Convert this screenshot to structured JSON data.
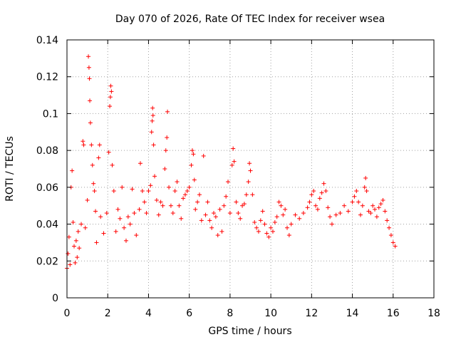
{
  "chart_data": {
    "type": "scatter",
    "title": "Day 070 of 2026, Rate Of TEC Index for receiver wsea",
    "xlabel": "GPS time / hours",
    "ylabel": "ROTI / TECUs",
    "xlim": [
      0,
      18
    ],
    "ylim": [
      0,
      0.14
    ],
    "xticks": [
      "0",
      "2",
      "4",
      "6",
      "8",
      "10",
      "12",
      "14",
      "16",
      "18"
    ],
    "yticks": [
      "0",
      "0.02",
      "0.04",
      "0.06",
      "0.08",
      "0.1",
      "0.12",
      "0.14"
    ],
    "grid": true,
    "marker": "+",
    "color": "#ff0000",
    "series": [
      {
        "points": [
          [
            0.0,
            0.016
          ],
          [
            0.05,
            0.024
          ],
          [
            0.1,
            0.033
          ],
          [
            0.15,
            0.018
          ],
          [
            0.2,
            0.06
          ],
          [
            0.25,
            0.069
          ],
          [
            0.3,
            0.041
          ],
          [
            0.35,
            0.028
          ],
          [
            0.4,
            0.019
          ],
          [
            0.45,
            0.031
          ],
          [
            0.5,
            0.022
          ],
          [
            0.55,
            0.036
          ],
          [
            0.6,
            0.027
          ],
          [
            0.7,
            0.04
          ],
          [
            0.78,
            0.085
          ],
          [
            0.82,
            0.083
          ],
          [
            0.9,
            0.038
          ],
          [
            1.0,
            0.053
          ],
          [
            1.05,
            0.131
          ],
          [
            1.08,
            0.125
          ],
          [
            1.1,
            0.119
          ],
          [
            1.12,
            0.107
          ],
          [
            1.15,
            0.095
          ],
          [
            1.2,
            0.083
          ],
          [
            1.25,
            0.072
          ],
          [
            1.3,
            0.062
          ],
          [
            1.35,
            0.058
          ],
          [
            1.4,
            0.047
          ],
          [
            1.45,
            0.03
          ],
          [
            1.55,
            0.076
          ],
          [
            1.6,
            0.083
          ],
          [
            1.65,
            0.044
          ],
          [
            1.8,
            0.035
          ],
          [
            1.95,
            0.046
          ],
          [
            2.05,
            0.079
          ],
          [
            2.1,
            0.104
          ],
          [
            2.13,
            0.109
          ],
          [
            2.15,
            0.115
          ],
          [
            2.18,
            0.112
          ],
          [
            2.22,
            0.072
          ],
          [
            2.3,
            0.058
          ],
          [
            2.4,
            0.036
          ],
          [
            2.5,
            0.048
          ],
          [
            2.6,
            0.043
          ],
          [
            2.7,
            0.06
          ],
          [
            2.8,
            0.038
          ],
          [
            2.9,
            0.031
          ],
          [
            3.0,
            0.044
          ],
          [
            3.1,
            0.04
          ],
          [
            3.2,
            0.059
          ],
          [
            3.3,
            0.046
          ],
          [
            3.4,
            0.034
          ],
          [
            3.55,
            0.048
          ],
          [
            3.6,
            0.073
          ],
          [
            3.7,
            0.058
          ],
          [
            3.8,
            0.052
          ],
          [
            3.9,
            0.046
          ],
          [
            4.0,
            0.058
          ],
          [
            4.1,
            0.061
          ],
          [
            4.15,
            0.09
          ],
          [
            4.18,
            0.096
          ],
          [
            4.2,
            0.103
          ],
          [
            4.22,
            0.099
          ],
          [
            4.25,
            0.083
          ],
          [
            4.3,
            0.066
          ],
          [
            4.4,
            0.053
          ],
          [
            4.5,
            0.045
          ],
          [
            4.6,
            0.052
          ],
          [
            4.7,
            0.05
          ],
          [
            4.8,
            0.07
          ],
          [
            4.85,
            0.08
          ],
          [
            4.9,
            0.087
          ],
          [
            4.93,
            0.101
          ],
          [
            5.0,
            0.06
          ],
          [
            5.1,
            0.05
          ],
          [
            5.2,
            0.046
          ],
          [
            5.3,
            0.058
          ],
          [
            5.4,
            0.063
          ],
          [
            5.5,
            0.05
          ],
          [
            5.6,
            0.043
          ],
          [
            5.7,
            0.054
          ],
          [
            5.8,
            0.056
          ],
          [
            5.9,
            0.058
          ],
          [
            6.0,
            0.06
          ],
          [
            6.1,
            0.072
          ],
          [
            6.15,
            0.08
          ],
          [
            6.2,
            0.078
          ],
          [
            6.25,
            0.064
          ],
          [
            6.3,
            0.048
          ],
          [
            6.4,
            0.052
          ],
          [
            6.5,
            0.056
          ],
          [
            6.6,
            0.042
          ],
          [
            6.7,
            0.077
          ],
          [
            6.8,
            0.045
          ],
          [
            6.9,
            0.052
          ],
          [
            7.0,
            0.042
          ],
          [
            7.1,
            0.038
          ],
          [
            7.2,
            0.046
          ],
          [
            7.3,
            0.044
          ],
          [
            7.4,
            0.034
          ],
          [
            7.5,
            0.048
          ],
          [
            7.6,
            0.036
          ],
          [
            7.7,
            0.05
          ],
          [
            7.8,
            0.055
          ],
          [
            7.9,
            0.063
          ],
          [
            8.0,
            0.046
          ],
          [
            8.1,
            0.072
          ],
          [
            8.15,
            0.081
          ],
          [
            8.2,
            0.074
          ],
          [
            8.3,
            0.052
          ],
          [
            8.4,
            0.046
          ],
          [
            8.5,
            0.043
          ],
          [
            8.6,
            0.05
          ],
          [
            8.7,
            0.051
          ],
          [
            8.8,
            0.056
          ],
          [
            8.9,
            0.063
          ],
          [
            8.95,
            0.073
          ],
          [
            9.0,
            0.069
          ],
          [
            9.1,
            0.056
          ],
          [
            9.2,
            0.041
          ],
          [
            9.3,
            0.038
          ],
          [
            9.4,
            0.036
          ],
          [
            9.5,
            0.042
          ],
          [
            9.6,
            0.047
          ],
          [
            9.7,
            0.04
          ],
          [
            9.8,
            0.035
          ],
          [
            9.9,
            0.033
          ],
          [
            10.0,
            0.038
          ],
          [
            10.1,
            0.036
          ],
          [
            10.2,
            0.041
          ],
          [
            10.3,
            0.044
          ],
          [
            10.4,
            0.052
          ],
          [
            10.5,
            0.05
          ],
          [
            10.6,
            0.045
          ],
          [
            10.7,
            0.048
          ],
          [
            10.8,
            0.038
          ],
          [
            10.9,
            0.034
          ],
          [
            11.0,
            0.04
          ],
          [
            11.2,
            0.045
          ],
          [
            11.4,
            0.043
          ],
          [
            11.6,
            0.046
          ],
          [
            11.8,
            0.049
          ],
          [
            11.9,
            0.052
          ],
          [
            12.0,
            0.056
          ],
          [
            12.1,
            0.058
          ],
          [
            12.2,
            0.05
          ],
          [
            12.3,
            0.048
          ],
          [
            12.4,
            0.054
          ],
          [
            12.5,
            0.057
          ],
          [
            12.6,
            0.062
          ],
          [
            12.7,
            0.058
          ],
          [
            12.8,
            0.049
          ],
          [
            12.9,
            0.044
          ],
          [
            13.0,
            0.04
          ],
          [
            13.2,
            0.045
          ],
          [
            13.4,
            0.046
          ],
          [
            13.6,
            0.05
          ],
          [
            13.8,
            0.047
          ],
          [
            14.0,
            0.052
          ],
          [
            14.1,
            0.055
          ],
          [
            14.2,
            0.058
          ],
          [
            14.3,
            0.052
          ],
          [
            14.4,
            0.045
          ],
          [
            14.5,
            0.05
          ],
          [
            14.6,
            0.06
          ],
          [
            14.65,
            0.065
          ],
          [
            14.7,
            0.058
          ],
          [
            14.8,
            0.047
          ],
          [
            14.9,
            0.046
          ],
          [
            15.0,
            0.05
          ],
          [
            15.1,
            0.048
          ],
          [
            15.2,
            0.044
          ],
          [
            15.3,
            0.049
          ],
          [
            15.4,
            0.051
          ],
          [
            15.5,
            0.053
          ],
          [
            15.6,
            0.047
          ],
          [
            15.7,
            0.042
          ],
          [
            15.8,
            0.038
          ],
          [
            15.9,
            0.034
          ],
          [
            16.0,
            0.03
          ],
          [
            16.1,
            0.028
          ]
        ]
      }
    ]
  }
}
